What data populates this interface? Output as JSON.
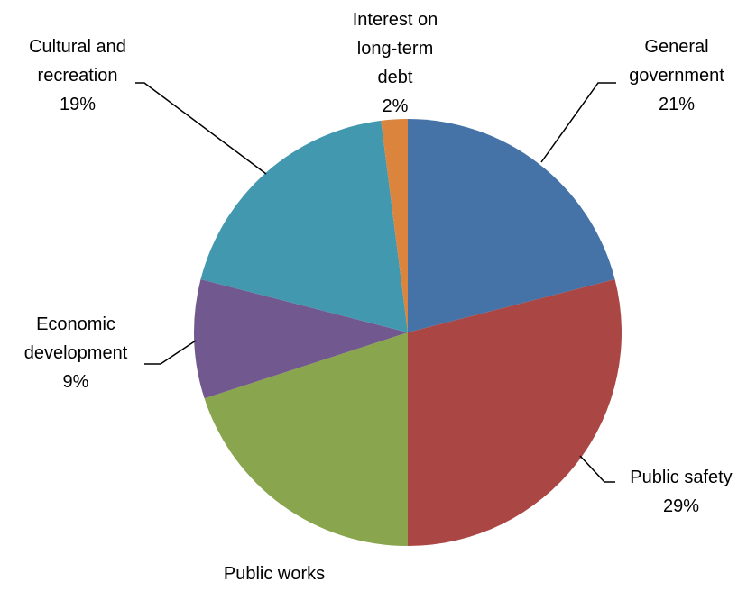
{
  "chart_data": {
    "type": "pie",
    "title": "",
    "slices": [
      {
        "label": [
          "General",
          "government"
        ],
        "value": 21,
        "value_label": "21%",
        "color": "#4572A7"
      },
      {
        "label": [
          "Public safety"
        ],
        "value": 29,
        "value_label": "29%",
        "color": "#AA4643"
      },
      {
        "label": [
          "Public works"
        ],
        "value": 20,
        "value_label": "20%",
        "color": "#89A54E"
      },
      {
        "label": [
          "Economic",
          "development"
        ],
        "value": 9,
        "value_label": "9%",
        "color": "#71588F"
      },
      {
        "label": [
          "Cultural and",
          "recreation"
        ],
        "value": 19,
        "value_label": "19%",
        "color": "#4198AF"
      },
      {
        "label": [
          "Interest on",
          "long-term",
          "debt"
        ],
        "value": 2,
        "value_label": "2%",
        "color": "#DB843D"
      }
    ]
  }
}
